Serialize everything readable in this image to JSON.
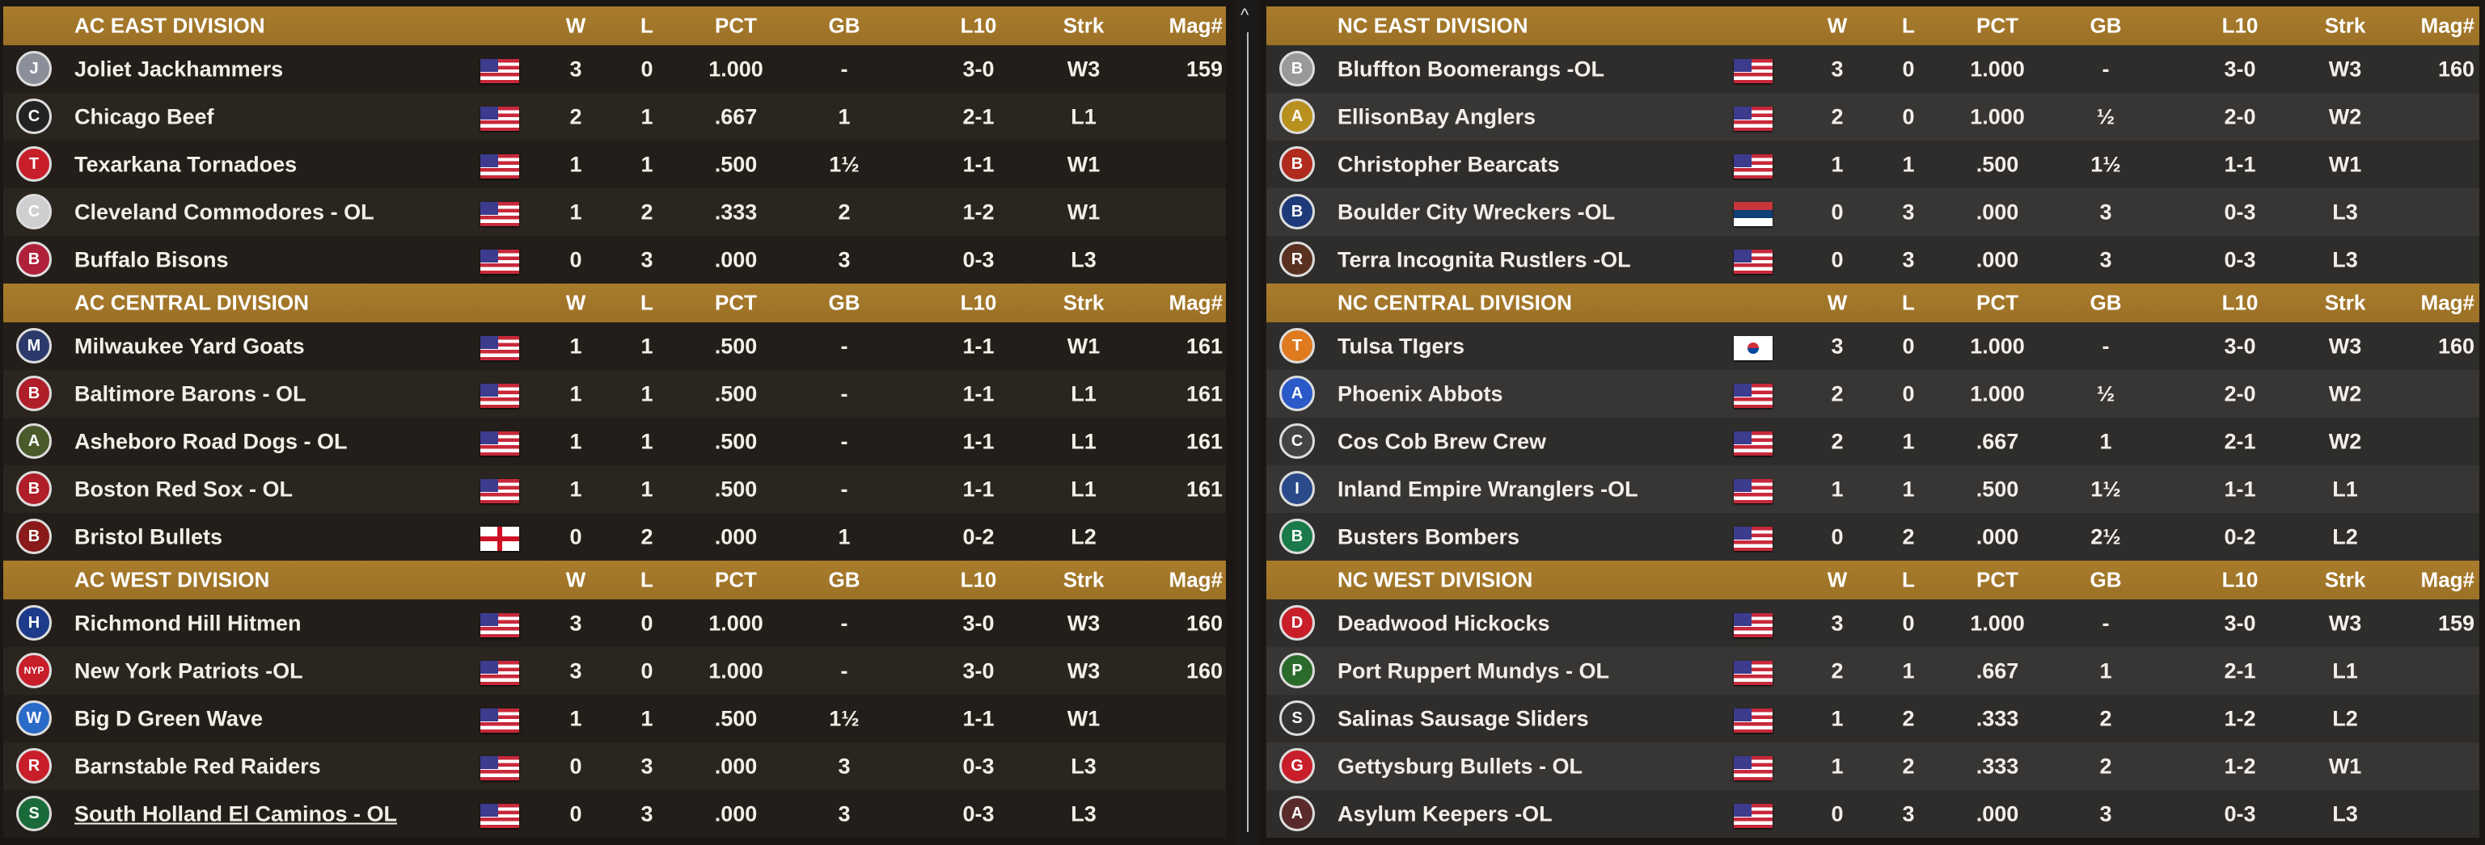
{
  "columns": {
    "w": "W",
    "l": "L",
    "pct": "PCT",
    "gb": "GB",
    "l10": "L10",
    "strk": "Strk",
    "mag": "Mag#"
  },
  "left": [
    {
      "title": "AC EAST DIVISION",
      "teams": [
        {
          "name": "Joliet Jackhammers",
          "flag": "us",
          "w": "3",
          "l": "0",
          "pct": "1.000",
          "gb": "-",
          "l10": "3-0",
          "strk": "W3",
          "mag": "159",
          "logo": "J",
          "logo_color": "#8a8f99"
        },
        {
          "name": "Chicago Beef",
          "flag": "us",
          "w": "2",
          "l": "1",
          "pct": ".667",
          "gb": "1",
          "l10": "2-1",
          "strk": "L1",
          "mag": "",
          "logo": "C",
          "logo_color": "#222"
        },
        {
          "name": "Texarkana Tornadoes",
          "flag": "us",
          "w": "1",
          "l": "1",
          "pct": ".500",
          "gb": "1½",
          "l10": "1-1",
          "strk": "W1",
          "mag": "",
          "logo": "T",
          "logo_color": "#c81e2a"
        },
        {
          "name": "Cleveland Commodores - OL",
          "flag": "us",
          "w": "1",
          "l": "2",
          "pct": ".333",
          "gb": "2",
          "l10": "1-2",
          "strk": "W1",
          "mag": "",
          "logo": "C",
          "logo_color": "#cfcfcf"
        },
        {
          "name": "Buffalo Bisons",
          "flag": "us",
          "w": "0",
          "l": "3",
          "pct": ".000",
          "gb": "3",
          "l10": "0-3",
          "strk": "L3",
          "mag": "",
          "logo": "B",
          "logo_color": "#b0203a"
        }
      ]
    },
    {
      "title": "AC CENTRAL DIVISION",
      "teams": [
        {
          "name": "Milwaukee Yard Goats",
          "flag": "us",
          "w": "1",
          "l": "1",
          "pct": ".500",
          "gb": "-",
          "l10": "1-1",
          "strk": "W1",
          "mag": "161",
          "logo": "M",
          "logo_color": "#2b3a6a"
        },
        {
          "name": "Baltimore Barons - OL",
          "flag": "us",
          "w": "1",
          "l": "1",
          "pct": ".500",
          "gb": "-",
          "l10": "1-1",
          "strk": "L1",
          "mag": "161",
          "logo": "B",
          "logo_color": "#b01e2a"
        },
        {
          "name": "Asheboro Road Dogs - OL",
          "flag": "us",
          "w": "1",
          "l": "1",
          "pct": ".500",
          "gb": "-",
          "l10": "1-1",
          "strk": "L1",
          "mag": "161",
          "logo": "A",
          "logo_color": "#4a5a2a"
        },
        {
          "name": "Boston Red Sox - OL",
          "flag": "us",
          "w": "1",
          "l": "1",
          "pct": ".500",
          "gb": "-",
          "l10": "1-1",
          "strk": "L1",
          "mag": "161",
          "logo": "B",
          "logo_color": "#b01e2a"
        },
        {
          "name": "Bristol Bullets",
          "flag": "en",
          "w": "0",
          "l": "2",
          "pct": ".000",
          "gb": "1",
          "l10": "0-2",
          "strk": "L2",
          "mag": "",
          "logo": "B",
          "logo_color": "#8a1a1a"
        }
      ]
    },
    {
      "title": "AC WEST DIVISION",
      "teams": [
        {
          "name": "Richmond Hill Hitmen",
          "flag": "us",
          "w": "3",
          "l": "0",
          "pct": "1.000",
          "gb": "-",
          "l10": "3-0",
          "strk": "W3",
          "mag": "160",
          "logo": "H",
          "logo_color": "#1e3a8a"
        },
        {
          "name": "New York Patriots -OL",
          "flag": "us",
          "w": "3",
          "l": "0",
          "pct": "1.000",
          "gb": "-",
          "l10": "3-0",
          "strk": "W3",
          "mag": "160",
          "logo": "NYP",
          "logo_color": "#c81e2a"
        },
        {
          "name": "Big D Green Wave",
          "flag": "us",
          "w": "1",
          "l": "1",
          "pct": ".500",
          "gb": "1½",
          "l10": "1-1",
          "strk": "W1",
          "mag": "",
          "logo": "W",
          "logo_color": "#2a6ac8"
        },
        {
          "name": "Barnstable Red Raiders",
          "flag": "us",
          "w": "0",
          "l": "3",
          "pct": ".000",
          "gb": "3",
          "l10": "0-3",
          "strk": "L3",
          "mag": "",
          "logo": "R",
          "logo_color": "#c81e2a"
        },
        {
          "name": "South Holland El Caminos - OL",
          "flag": "us",
          "w": "0",
          "l": "3",
          "pct": ".000",
          "gb": "3",
          "l10": "0-3",
          "strk": "L3",
          "mag": "",
          "logo": "S",
          "logo_color": "#1a6a3a",
          "hover": true
        }
      ]
    }
  ],
  "right": [
    {
      "title": "NC EAST DIVISION",
      "teams": [
        {
          "name": "Bluffton Boomerangs -OL",
          "flag": "us",
          "w": "3",
          "l": "0",
          "pct": "1.000",
          "gb": "-",
          "l10": "3-0",
          "strk": "W3",
          "mag": "160",
          "logo": "B",
          "logo_color": "#999"
        },
        {
          "name": "EllisonBay Anglers",
          "flag": "us",
          "w": "2",
          "l": "0",
          "pct": "1.000",
          "gb": "½",
          "l10": "2-0",
          "strk": "W2",
          "mag": "",
          "logo": "A",
          "logo_color": "#b8901e"
        },
        {
          "name": "Christopher Bearcats",
          "flag": "us",
          "w": "1",
          "l": "1",
          "pct": ".500",
          "gb": "1½",
          "l10": "1-1",
          "strk": "W1",
          "mag": "",
          "logo": "B",
          "logo_color": "#b02a1e"
        },
        {
          "name": "Boulder City Wreckers -OL",
          "flag": "rs",
          "w": "0",
          "l": "3",
          "pct": ".000",
          "gb": "3",
          "l10": "0-3",
          "strk": "L3",
          "mag": "",
          "logo": "B",
          "logo_color": "#1e3a7a"
        },
        {
          "name": "Terra Incognita Rustlers  -OL",
          "flag": "us",
          "w": "0",
          "l": "3",
          "pct": ".000",
          "gb": "3",
          "l10": "0-3",
          "strk": "L3",
          "mag": "",
          "logo": "R",
          "logo_color": "#5a3020"
        }
      ]
    },
    {
      "title": "NC CENTRAL DIVISION",
      "teams": [
        {
          "name": "Tulsa TIgers",
          "flag": "kr",
          "w": "3",
          "l": "0",
          "pct": "1.000",
          "gb": "-",
          "l10": "3-0",
          "strk": "W3",
          "mag": "160",
          "logo": "T",
          "logo_color": "#e07a1e"
        },
        {
          "name": "Phoenix Abbots",
          "flag": "us",
          "w": "2",
          "l": "0",
          "pct": "1.000",
          "gb": "½",
          "l10": "2-0",
          "strk": "W2",
          "mag": "",
          "logo": "A",
          "logo_color": "#2a5ac8"
        },
        {
          "name": "Cos Cob Brew Crew",
          "flag": "us",
          "w": "2",
          "l": "1",
          "pct": ".667",
          "gb": "1",
          "l10": "2-1",
          "strk": "W2",
          "mag": "",
          "logo": "C",
          "logo_color": "#444"
        },
        {
          "name": "Inland Empire Wranglers -OL",
          "flag": "us",
          "w": "1",
          "l": "1",
          "pct": ".500",
          "gb": "1½",
          "l10": "1-1",
          "strk": "L1",
          "mag": "",
          "logo": "I",
          "logo_color": "#2a4a8a"
        },
        {
          "name": "Busters Bombers",
          "flag": "us",
          "w": "0",
          "l": "2",
          "pct": ".000",
          "gb": "2½",
          "l10": "0-2",
          "strk": "L2",
          "mag": "",
          "logo": "B",
          "logo_color": "#1a7a4a"
        }
      ]
    },
    {
      "title": "NC WEST DIVISION",
      "teams": [
        {
          "name": "Deadwood Hickocks",
          "flag": "us",
          "w": "3",
          "l": "0",
          "pct": "1.000",
          "gb": "-",
          "l10": "3-0",
          "strk": "W3",
          "mag": "159",
          "logo": "D",
          "logo_color": "#c81e2a"
        },
        {
          "name": "Port Ruppert Mundys - OL",
          "flag": "us",
          "w": "2",
          "l": "1",
          "pct": ".667",
          "gb": "1",
          "l10": "2-1",
          "strk": "L1",
          "mag": "",
          "logo": "P",
          "logo_color": "#2a6a2a"
        },
        {
          "name": "Salinas Sausage Sliders",
          "flag": "us",
          "w": "1",
          "l": "2",
          "pct": ".333",
          "gb": "2",
          "l10": "1-2",
          "strk": "L2",
          "mag": "",
          "logo": "S",
          "logo_color": "#333"
        },
        {
          "name": "Gettysburg Bullets - OL",
          "flag": "us",
          "w": "1",
          "l": "2",
          "pct": ".333",
          "gb": "2",
          "l10": "1-2",
          "strk": "W1",
          "mag": "",
          "logo": "G",
          "logo_color": "#c81e2a"
        },
        {
          "name": "Asylum Keepers -OL",
          "flag": "us",
          "w": "0",
          "l": "3",
          "pct": ".000",
          "gb": "3",
          "l10": "0-3",
          "strk": "L3",
          "mag": "",
          "logo": "A",
          "logo_color": "#5a2a2a"
        }
      ]
    }
  ],
  "scrollbar": {
    "up_arrow": "^"
  }
}
